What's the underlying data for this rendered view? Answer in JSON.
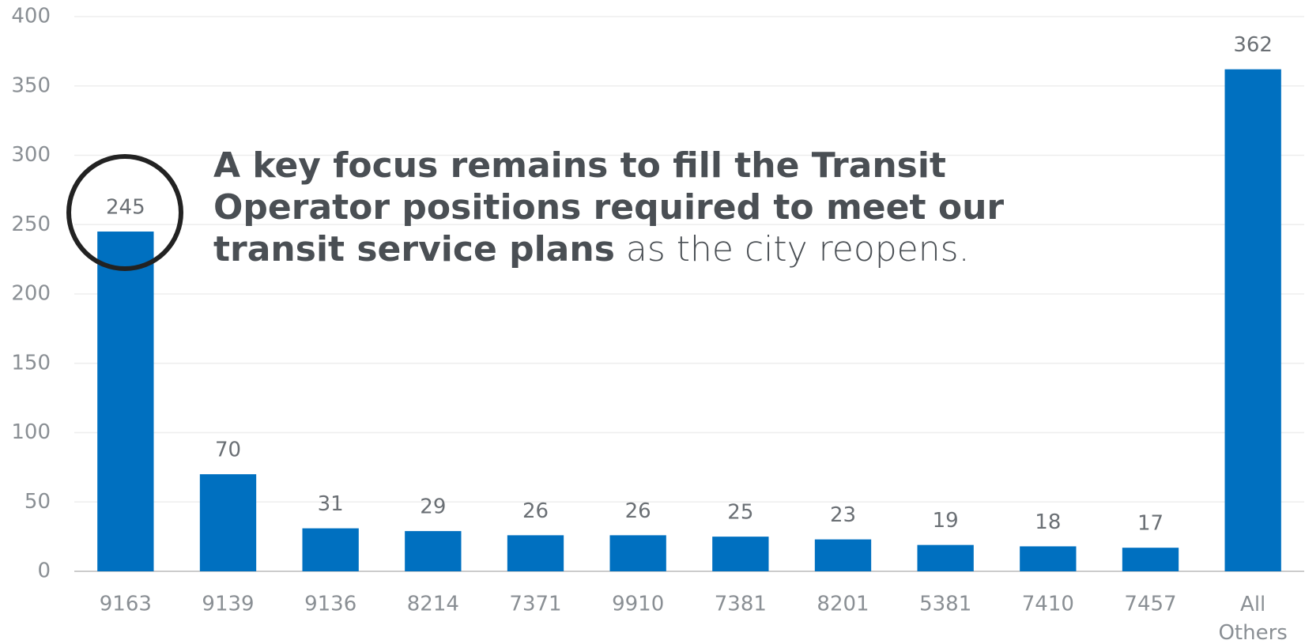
{
  "chart_data": {
    "type": "bar",
    "categories": [
      "9163",
      "9139",
      "9136",
      "8214",
      "7371",
      "9910",
      "7381",
      "8201",
      "5381",
      "7410",
      "7457",
      "All Others"
    ],
    "values": [
      245,
      70,
      31,
      29,
      26,
      26,
      25,
      23,
      19,
      18,
      17,
      362
    ],
    "color": "#0070c0",
    "ylim": [
      0,
      400
    ],
    "yticks": [
      0,
      50,
      100,
      150,
      200,
      250,
      300,
      350,
      400
    ],
    "grid": true,
    "annotation": {
      "bold": "A key focus remains to fill the Transit Operator positions required to meet our transit service plans",
      "text": " as the city reopens."
    }
  }
}
